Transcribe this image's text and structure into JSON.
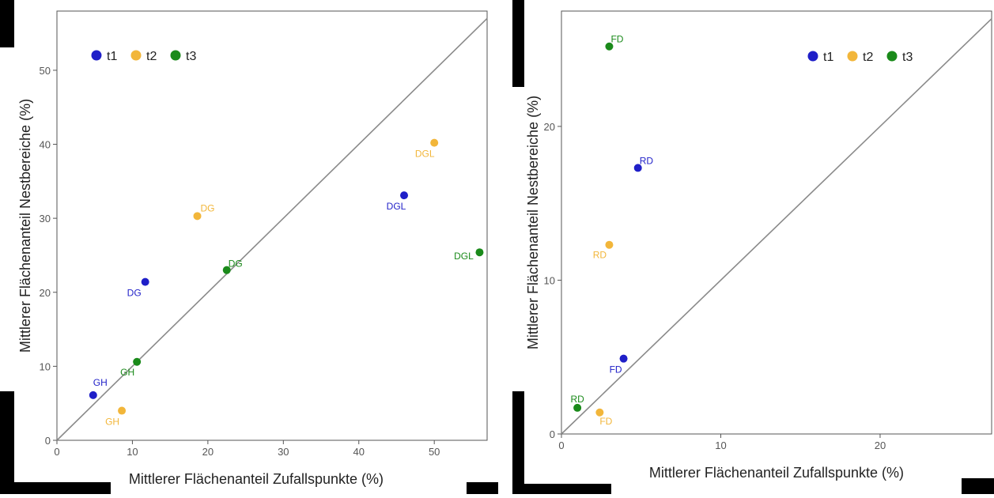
{
  "chart_data": [
    {
      "type": "scatter",
      "xlabel": "Mittlerer Flächenanteil Zufallspunkte (%)",
      "ylabel": "Mittlerer Flächenanteil Nestbereiche (%)",
      "xlim": [
        0,
        57
      ],
      "ylim": [
        0,
        58
      ],
      "xticks": [
        0,
        10,
        20,
        30,
        40,
        50
      ],
      "yticks": [
        0,
        10,
        20,
        30,
        40,
        50
      ],
      "grid": false,
      "legend_position": "top-left",
      "diagonal": true,
      "series": [
        {
          "name": "t1",
          "color": "#1f1fc8",
          "points": [
            {
              "x": 4.8,
              "y": 6.1,
              "label": "GH"
            },
            {
              "x": 11.7,
              "y": 21.4,
              "label": "DG"
            },
            {
              "x": 46.0,
              "y": 33.1,
              "label": "DGL"
            }
          ]
        },
        {
          "name": "t2",
          "color": "#f2b63a",
          "points": [
            {
              "x": 8.6,
              "y": 4.0,
              "label": "GH"
            },
            {
              "x": 18.6,
              "y": 30.3,
              "label": "DG"
            },
            {
              "x": 50.0,
              "y": 40.2,
              "label": "DGL"
            }
          ]
        },
        {
          "name": "t3",
          "color": "#1a8a1a",
          "points": [
            {
              "x": 10.6,
              "y": 10.6,
              "label": "GH"
            },
            {
              "x": 22.5,
              "y": 23.0,
              "label": "DG"
            },
            {
              "x": 56.0,
              "y": 25.4,
              "label": "DGL"
            }
          ]
        }
      ]
    },
    {
      "type": "scatter",
      "xlabel": "Mittlerer Flächenanteil Zufallspunkte (%)",
      "ylabel": "Mittlerer Flächenanteil Nestbereiche (%)",
      "xlim": [
        0,
        27
      ],
      "ylim": [
        0,
        27.5
      ],
      "xticks": [
        0,
        10,
        20
      ],
      "yticks": [
        0,
        10,
        20
      ],
      "grid": false,
      "legend_position": "top-right",
      "diagonal": true,
      "series": [
        {
          "name": "t1",
          "color": "#1f1fc8",
          "points": [
            {
              "x": 4.8,
              "y": 17.3,
              "label": "RD"
            },
            {
              "x": 3.9,
              "y": 4.9,
              "label": "FD"
            }
          ]
        },
        {
          "name": "t2",
          "color": "#f2b63a",
          "points": [
            {
              "x": 3.0,
              "y": 12.3,
              "label": "RD"
            },
            {
              "x": 2.4,
              "y": 1.4,
              "label": "FD"
            }
          ]
        },
        {
          "name": "t3",
          "color": "#1a8a1a",
          "points": [
            {
              "x": 3.0,
              "y": 25.2,
              "label": "FD"
            },
            {
              "x": 1.0,
              "y": 1.7,
              "label": "RD"
            }
          ]
        }
      ]
    }
  ]
}
